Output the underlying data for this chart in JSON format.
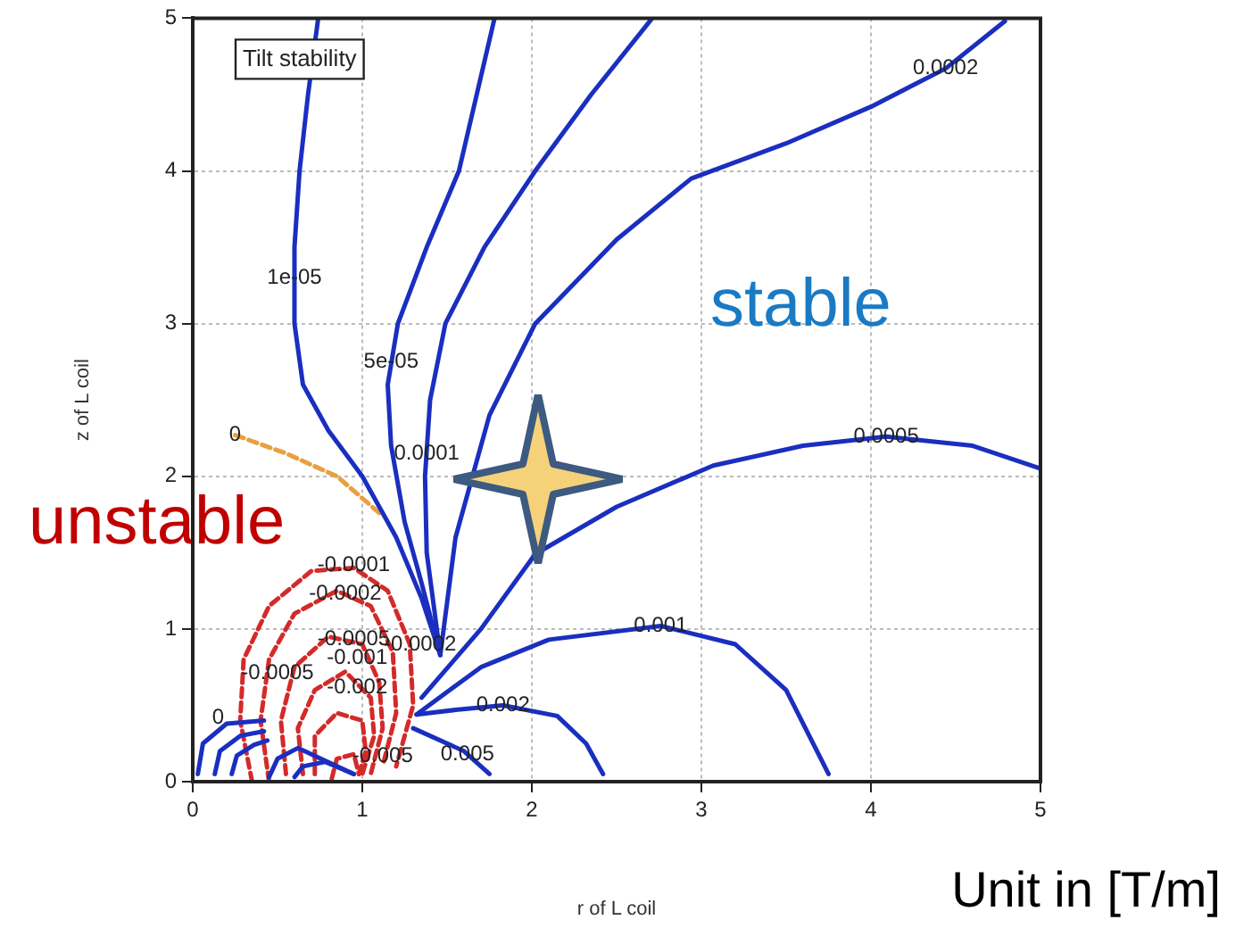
{
  "chart_data": {
    "type": "line",
    "xlabel": "r of L coil",
    "ylabel": "z of L coil",
    "xlim": [
      0,
      5
    ],
    "ylim": [
      0,
      5
    ],
    "xticks": [
      0,
      1,
      2,
      3,
      4,
      5
    ],
    "yticks": [
      0,
      1,
      2,
      3,
      4,
      5
    ],
    "grid": true,
    "legend": false,
    "marker": "none",
    "series": [
      {
        "color": "#1a2fbf",
        "x": [
          0.74,
          0.68,
          0.63,
          0.6,
          0.6,
          0.65,
          0.8,
          1.0,
          1.2,
          1.35,
          1.46
        ],
        "values": [
          5,
          4.5,
          4,
          3.5,
          3,
          2.6,
          2.3,
          2.0,
          1.6,
          1.2,
          0.83
        ]
      },
      {
        "color": "#1a2fbf",
        "x": [
          1.78,
          1.57,
          1.38,
          1.21,
          1.15,
          1.17,
          1.25,
          1.35,
          1.46
        ],
        "values": [
          5,
          4,
          3.5,
          3,
          2.6,
          2.2,
          1.7,
          1.3,
          0.83
        ]
      },
      {
        "color": "#1a2fbf",
        "x": [
          2.71,
          2.35,
          2.02,
          1.72,
          1.49,
          1.4,
          1.37,
          1.38,
          1.46
        ],
        "values": [
          5,
          4.5,
          4,
          3.5,
          3,
          2.5,
          2.0,
          1.5,
          0.83
        ]
      },
      {
        "color": "#1a2fbf",
        "x": [
          4.79,
          4.44,
          4.0,
          3.5,
          2.94,
          2.5,
          2.02,
          1.75,
          1.55,
          1.46
        ],
        "values": [
          4.98,
          4.67,
          4.42,
          4.18,
          3.95,
          3.55,
          3.0,
          2.4,
          1.6,
          0.83
        ]
      },
      {
        "color": "#1a2fbf",
        "x": [
          1.35,
          1.7,
          2.02,
          2.5,
          3.07,
          3.6,
          4.09,
          4.6,
          5
        ],
        "values": [
          0.55,
          1.0,
          1.49,
          1.8,
          2.07,
          2.2,
          2.26,
          2.2,
          2.05
        ]
      },
      {
        "color": "#1a2fbf",
        "x": [
          1.32,
          1.7,
          2.1,
          2.76,
          3.2,
          3.5,
          3.75
        ],
        "values": [
          0.44,
          0.75,
          0.93,
          1.02,
          0.9,
          0.6,
          0.05
        ]
      },
      {
        "color": "#1a2fbf",
        "x": [
          1.32,
          1.55,
          1.83,
          2.15,
          2.32,
          2.42
        ],
        "values": [
          0.44,
          0.47,
          0.5,
          0.43,
          0.25,
          0.05
        ]
      },
      {
        "color": "#1a2fbf",
        "x": [
          1.3,
          1.6,
          1.75
        ],
        "values": [
          0.35,
          0.2,
          0.05
        ]
      },
      {
        "color": "#1a2fbf",
        "x": [
          0.03,
          0.06,
          0.2,
          0.42
        ],
        "values": [
          0.05,
          0.25,
          0.38,
          0.4
        ]
      },
      {
        "color": "#1a2fbf",
        "x": [
          0.13,
          0.16,
          0.28,
          0.42
        ],
        "values": [
          0.05,
          0.2,
          0.3,
          0.33
        ]
      },
      {
        "color": "#1a2fbf",
        "x": [
          0.23,
          0.26,
          0.36,
          0.44
        ],
        "values": [
          0.05,
          0.17,
          0.24,
          0.27
        ]
      },
      {
        "color": "#1a2fbf",
        "x": [
          0.45,
          0.5,
          0.62,
          0.95
        ],
        "values": [
          0.03,
          0.15,
          0.22,
          0.05
        ]
      },
      {
        "color": "#1a2fbf",
        "x": [
          0.6,
          0.65,
          0.78,
          0.95
        ],
        "values": [
          0.03,
          0.1,
          0.13,
          0.05
        ]
      },
      {
        "color": "#e8a040",
        "line_style": "dashed",
        "x": [
          0.25,
          0.55,
          0.85,
          1.1
        ],
        "values": [
          2.27,
          2.15,
          2.0,
          1.76
        ]
      },
      {
        "color": "#d42a2a",
        "line_style": "dashed",
        "x": [
          0.35,
          0.28,
          0.3,
          0.45,
          0.7,
          0.95,
          1.15,
          1.28,
          1.3,
          1.2
        ],
        "values": [
          0,
          0.4,
          0.8,
          1.15,
          1.38,
          1.4,
          1.25,
          0.9,
          0.5,
          0.1
        ]
      },
      {
        "color": "#d42a2a",
        "line_style": "dashed",
        "x": [
          0.45,
          0.4,
          0.45,
          0.6,
          0.85,
          1.05,
          1.18,
          1.2,
          1.12
        ],
        "values": [
          0,
          0.4,
          0.8,
          1.1,
          1.25,
          1.15,
          0.85,
          0.45,
          0.1
        ]
      },
      {
        "color": "#d42a2a",
        "line_style": "dashed",
        "x": [
          0.55,
          0.52,
          0.6,
          0.8,
          1.0,
          1.1,
          1.12,
          1.05
        ],
        "values": [
          0.05,
          0.4,
          0.75,
          0.95,
          0.9,
          0.65,
          0.35,
          0.05
        ]
      },
      {
        "color": "#d42a2a",
        "line_style": "dashed",
        "x": [
          0.65,
          0.62,
          0.72,
          0.9,
          1.05,
          1.07,
          1.0
        ],
        "values": [
          0.05,
          0.35,
          0.6,
          0.72,
          0.55,
          0.3,
          0.05
        ]
      },
      {
        "color": "#d42a2a",
        "line_style": "dashed",
        "x": [
          0.72,
          0.72,
          0.85,
          1.0,
          1.02,
          0.98
        ],
        "values": [
          0.05,
          0.3,
          0.45,
          0.4,
          0.2,
          0.05
        ]
      },
      {
        "color": "#d42a2a",
        "line_style": "dashed",
        "x": [
          0.82,
          0.85,
          0.95,
          0.98
        ],
        "values": [
          0.02,
          0.15,
          0.18,
          0.05
        ]
      }
    ],
    "annotations": [
      "Tilt stability",
      "Unit in [T/m]",
      "stable",
      "unstable",
      {
        "text": "1e-05",
        "x": 0.6,
        "y": 3.3
      },
      {
        "text": "5e-05",
        "x": 1.17,
        "y": 2.75
      },
      {
        "text": "0.0001",
        "x": 1.38,
        "y": 2.15
      },
      {
        "text": "0.0002",
        "x": 4.44,
        "y": 4.67
      },
      {
        "text": "0.0005",
        "x": 4.09,
        "y": 2.26
      },
      {
        "text": "0.001",
        "x": 2.76,
        "y": 1.02
      },
      {
        "text": "0.002",
        "x": 1.83,
        "y": 0.5
      },
      {
        "text": "0.005",
        "x": 1.62,
        "y": 0.18
      },
      {
        "text": "0",
        "x": 0.25,
        "y": 2.27
      },
      {
        "text": "0",
        "x": 0.15,
        "y": 0.42
      },
      {
        "text": "-0.0001",
        "x": 0.95,
        "y": 1.42
      },
      {
        "text": "-0.0002",
        "x": 0.9,
        "y": 1.23
      },
      {
        "text": "-0.0005",
        "x": 0.95,
        "y": 0.93
      },
      {
        "text": "-0.001",
        "x": 0.97,
        "y": 0.81
      },
      {
        "text": "-0.002",
        "x": 0.97,
        "y": 0.62
      },
      {
        "text": "-0.0005",
        "x": 0.5,
        "y": 0.71
      },
      {
        "text": "-0.0002",
        "x": 1.34,
        "y": 0.9
      },
      {
        "text": "-0.005",
        "x": 1.12,
        "y": 0.17
      }
    ]
  }
}
